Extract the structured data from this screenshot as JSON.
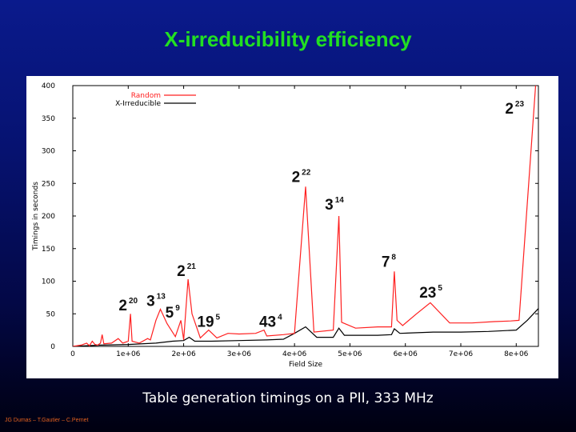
{
  "slide": {
    "title": "X-irreducibility efficiency",
    "subtitle": "Table generation timings on a PII, 333 MHz",
    "credits": "JG Dumas – T.Gautier – C.Pernet"
  },
  "colors": {
    "title": "#22e022",
    "random_series": "#ff2020",
    "x_irreducible_series": "#000000",
    "credits": "#e06020"
  },
  "chart_data": {
    "type": "line",
    "xlabel": "Field Size",
    "ylabel": "Timings in seconds",
    "xlim": [
      0,
      8400000
    ],
    "ylim": [
      0,
      400
    ],
    "xticks": [
      {
        "v": 0,
        "label": "0"
      },
      {
        "v": 1000000,
        "label": "1e+06"
      },
      {
        "v": 2000000,
        "label": "2e+06"
      },
      {
        "v": 3000000,
        "label": "3e+06"
      },
      {
        "v": 4000000,
        "label": "4e+06"
      },
      {
        "v": 5000000,
        "label": "5e+06"
      },
      {
        "v": 6000000,
        "label": "6e+06"
      },
      {
        "v": 7000000,
        "label": "7e+06"
      },
      {
        "v": 8000000,
        "label": "8e+06"
      }
    ],
    "yticks": [
      {
        "v": 0,
        "label": "0"
      },
      {
        "v": 50,
        "label": "50"
      },
      {
        "v": 100,
        "label": "100"
      },
      {
        "v": 150,
        "label": "150"
      },
      {
        "v": 200,
        "label": "200"
      },
      {
        "v": 250,
        "label": "250"
      },
      {
        "v": 300,
        "label": "300"
      },
      {
        "v": 350,
        "label": "350"
      },
      {
        "v": 400,
        "label": "400"
      }
    ],
    "legend_position": "top-left",
    "series": [
      {
        "name": "Random",
        "color": "#ff2020",
        "points": [
          [
            0,
            0
          ],
          [
            150000,
            2
          ],
          [
            250000,
            5
          ],
          [
            300000,
            1
          ],
          [
            350000,
            8
          ],
          [
            400000,
            3
          ],
          [
            450000,
            2
          ],
          [
            500000,
            5
          ],
          [
            530000,
            18
          ],
          [
            560000,
            4
          ],
          [
            700000,
            5
          ],
          [
            820000,
            12
          ],
          [
            900000,
            5
          ],
          [
            1000000,
            8
          ],
          [
            1040000,
            50
          ],
          [
            1070000,
            8
          ],
          [
            1200000,
            5
          ],
          [
            1350000,
            12
          ],
          [
            1400000,
            10
          ],
          [
            1500000,
            40
          ],
          [
            1580000,
            57
          ],
          [
            1700000,
            35
          ],
          [
            1850000,
            15
          ],
          [
            1950000,
            40
          ],
          [
            2000000,
            10
          ],
          [
            2080000,
            103
          ],
          [
            2150000,
            50
          ],
          [
            2300000,
            13
          ],
          [
            2450000,
            25
          ],
          [
            2600000,
            13
          ],
          [
            2800000,
            20
          ],
          [
            3000000,
            19
          ],
          [
            3300000,
            20
          ],
          [
            3450000,
            25
          ],
          [
            3500000,
            16
          ],
          [
            3800000,
            18
          ],
          [
            4000000,
            20
          ],
          [
            4200000,
            245
          ],
          [
            4350000,
            22
          ],
          [
            4700000,
            25
          ],
          [
            4800000,
            200
          ],
          [
            4850000,
            37
          ],
          [
            5100000,
            28
          ],
          [
            5500000,
            30
          ],
          [
            5750000,
            30
          ],
          [
            5800000,
            115
          ],
          [
            5850000,
            40
          ],
          [
            5950000,
            32
          ],
          [
            6200000,
            50
          ],
          [
            6450000,
            67
          ],
          [
            6800000,
            36
          ],
          [
            7200000,
            36
          ],
          [
            7600000,
            38
          ],
          [
            7900000,
            39
          ],
          [
            8050000,
            40
          ],
          [
            8250000,
            280
          ],
          [
            8350000,
            400
          ]
        ]
      },
      {
        "name": "X-Irreducible",
        "color": "#000000",
        "points": [
          [
            0,
            0
          ],
          [
            500000,
            2
          ],
          [
            1000000,
            3
          ],
          [
            1500000,
            5
          ],
          [
            1800000,
            8
          ],
          [
            2000000,
            9
          ],
          [
            2100000,
            14
          ],
          [
            2200000,
            8
          ],
          [
            2500000,
            8
          ],
          [
            3000000,
            9
          ],
          [
            3500000,
            10
          ],
          [
            3800000,
            11
          ],
          [
            4000000,
            20
          ],
          [
            4200000,
            30
          ],
          [
            4400000,
            14
          ],
          [
            4700000,
            14
          ],
          [
            4800000,
            28
          ],
          [
            4900000,
            17
          ],
          [
            5500000,
            17
          ],
          [
            5750000,
            18
          ],
          [
            5800000,
            27
          ],
          [
            5900000,
            20
          ],
          [
            6500000,
            22
          ],
          [
            7000000,
            22
          ],
          [
            7500000,
            23
          ],
          [
            8000000,
            25
          ],
          [
            8200000,
            40
          ],
          [
            8400000,
            58
          ]
        ]
      }
    ],
    "annotations": [
      {
        "x": 1000000,
        "y": 55,
        "base": "2",
        "exp": "20"
      },
      {
        "x": 1500000,
        "y": 62,
        "base": "3",
        "exp": "13"
      },
      {
        "x": 1800000,
        "y": 44,
        "base": "5",
        "exp": "9"
      },
      {
        "x": 2050000,
        "y": 108,
        "base": "2",
        "exp": "21"
      },
      {
        "x": 2450000,
        "y": 30,
        "base": "19",
        "exp": "5"
      },
      {
        "x": 3570000,
        "y": 30,
        "base": "43",
        "exp": "4"
      },
      {
        "x": 4120000,
        "y": 252,
        "base": "2",
        "exp": "22"
      },
      {
        "x": 4720000,
        "y": 210,
        "base": "3",
        "exp": "14"
      },
      {
        "x": 5700000,
        "y": 122,
        "base": "7",
        "exp": "8"
      },
      {
        "x": 6460000,
        "y": 75,
        "base": "23",
        "exp": "5"
      },
      {
        "x": 7970000,
        "y": 357,
        "base": "2",
        "exp": "23"
      }
    ]
  }
}
